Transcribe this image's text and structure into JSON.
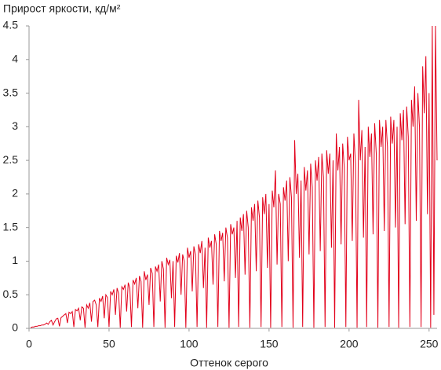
{
  "chart_data": {
    "type": "line",
    "title": "Прирост яркости, кд/м²",
    "x_label": "Оттенок серого",
    "color": "#e2001a",
    "x": [
      1,
      2,
      3,
      4,
      5,
      6,
      7,
      8,
      9,
      10,
      11,
      12,
      13,
      14,
      15,
      16,
      17,
      18,
      19,
      20,
      21,
      22,
      23,
      24,
      25,
      26,
      27,
      28,
      29,
      30,
      31,
      32,
      33,
      34,
      35,
      36,
      37,
      38,
      39,
      40,
      41,
      42,
      43,
      44,
      45,
      46,
      47,
      48,
      49,
      50,
      51,
      52,
      53,
      54,
      55,
      56,
      57,
      58,
      59,
      60,
      61,
      62,
      63,
      64,
      65,
      66,
      67,
      68,
      69,
      70,
      71,
      72,
      73,
      74,
      75,
      76,
      77,
      78,
      79,
      80,
      81,
      82,
      83,
      84,
      85,
      86,
      87,
      88,
      89,
      90,
      91,
      92,
      93,
      94,
      95,
      96,
      97,
      98,
      99,
      100,
      101,
      102,
      103,
      104,
      105,
      106,
      107,
      108,
      109,
      110,
      111,
      112,
      113,
      114,
      115,
      116,
      117,
      118,
      119,
      120,
      121,
      122,
      123,
      124,
      125,
      126,
      127,
      128,
      129,
      130,
      131,
      132,
      133,
      134,
      135,
      136,
      137,
      138,
      139,
      140,
      141,
      142,
      143,
      144,
      145,
      146,
      147,
      148,
      149,
      150,
      151,
      152,
      153,
      154,
      155,
      156,
      157,
      158,
      159,
      160,
      161,
      162,
      163,
      164,
      165,
      166,
      167,
      168,
      169,
      170,
      171,
      172,
      173,
      174,
      175,
      176,
      177,
      178,
      179,
      180,
      181,
      182,
      183,
      184,
      185,
      186,
      187,
      188,
      189,
      190,
      191,
      192,
      193,
      194,
      195,
      196,
      197,
      198,
      199,
      200,
      201,
      202,
      203,
      204,
      205,
      206,
      207,
      208,
      209,
      210,
      211,
      212,
      213,
      214,
      215,
      216,
      217,
      218,
      219,
      220,
      221,
      222,
      223,
      224,
      225,
      226,
      227,
      228,
      229,
      230,
      231,
      232,
      233,
      234,
      235,
      236,
      237,
      238,
      239,
      240,
      241,
      242,
      243,
      244,
      245,
      246,
      247,
      248,
      249,
      250,
      251,
      252,
      253,
      254,
      255
    ],
    "values": [
      0.01,
      0.02,
      0.02,
      0.03,
      0.03,
      0.04,
      0.04,
      0.05,
      0.05,
      0.06,
      0.08,
      0.06,
      0.1,
      0.12,
      0.05,
      0.1,
      0.14,
      0.15,
      0.03,
      0.16,
      0.18,
      0.2,
      0.22,
      0.08,
      0.24,
      0.22,
      0.25,
      0.02,
      0.28,
      0.26,
      0.3,
      0.12,
      0.32,
      0.3,
      0.01,
      0.35,
      0.3,
      0.38,
      0.1,
      0.4,
      0.42,
      0.35,
      0.02,
      0.45,
      0.4,
      0.48,
      0.15,
      0.5,
      0.46,
      0.02,
      0.55,
      0.5,
      0.58,
      0.2,
      0.6,
      0.52,
      0.01,
      0.62,
      0.58,
      0.65,
      0.25,
      0.68,
      0.6,
      0.02,
      0.72,
      0.66,
      0.75,
      0.3,
      0.78,
      0.7,
      0.01,
      0.85,
      0.72,
      0.8,
      0.35,
      0.9,
      0.82,
      0.02,
      0.92,
      0.85,
      0.95,
      0.4,
      1.0,
      0.88,
      0.01,
      1.05,
      0.95,
      1.02,
      0.45,
      1.0,
      0.02,
      1.08,
      0.98,
      1.12,
      0.5,
      1.1,
      1.0,
      0.01,
      1.2,
      1.05,
      1.15,
      0.55,
      1.22,
      1.1,
      0.02,
      1.25,
      1.12,
      1.3,
      0.6,
      1.2,
      0.01,
      1.35,
      1.2,
      1.3,
      0.65,
      1.4,
      1.25,
      0.02,
      1.45,
      1.3,
      1.42,
      0.7,
      1.5,
      1.35,
      0.01,
      1.55,
      1.4,
      1.5,
      0.75,
      1.6,
      0.02,
      1.65,
      1.45,
      1.7,
      0.8,
      1.75,
      1.5,
      0.01,
      1.8,
      1.6,
      1.85,
      0.85,
      1.9,
      1.65,
      0.02,
      1.95,
      1.7,
      2.0,
      0.9,
      1.85,
      0.01,
      2.05,
      1.8,
      2.35,
      0.95,
      2.0,
      1.85,
      0.02,
      2.1,
      1.9,
      2.2,
      1.0,
      2.25,
      1.95,
      0.01,
      2.8,
      2.0,
      2.3,
      1.05,
      2.2,
      0.02,
      2.4,
      2.05,
      2.35,
      1.1,
      2.45,
      2.1,
      0.01,
      2.5,
      2.2,
      2.55,
      1.15,
      2.6,
      2.25,
      0.02,
      2.65,
      2.3,
      2.6,
      1.2,
      2.5,
      0.01,
      2.9,
      2.35,
      2.7,
      1.25,
      2.75,
      2.4,
      0.02,
      2.85,
      2.5,
      2.6,
      1.3,
      2.9,
      2.45,
      0.01,
      3.4,
      2.5,
      2.95,
      1.35,
      2.7,
      0.02,
      3.0,
      2.55,
      2.9,
      1.4,
      3.05,
      2.6,
      0.01,
      3.1,
      2.7,
      3.0,
      1.45,
      3.1,
      2.7,
      0.02,
      3.15,
      2.75,
      3.1,
      1.5,
      3.0,
      0.01,
      3.2,
      2.8,
      3.25,
      1.55,
      3.3,
      2.85,
      0.02,
      3.4,
      3.0,
      3.6,
      1.6,
      3.5,
      3.0,
      0.02,
      3.9,
      3.2,
      4.05,
      1.7,
      3.5,
      0.01,
      4.5,
      0.2,
      4.5,
      2.5
    ],
    "xlim": [
      0,
      255
    ],
    "xticks": [
      0,
      50,
      100,
      150,
      200,
      250
    ],
    "ylim": [
      0,
      4.5
    ],
    "yticks": [
      0,
      0.5,
      1,
      1.5,
      2,
      2.5,
      3,
      3.5,
      4,
      4.5
    ]
  }
}
